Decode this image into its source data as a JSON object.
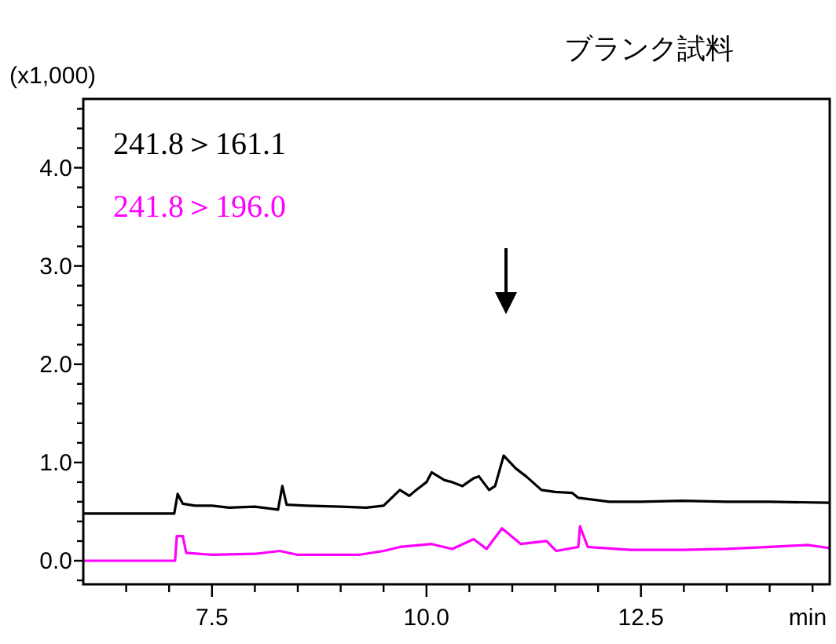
{
  "chart_data": {
    "type": "line",
    "title": "ブランク試料",
    "ylabel": "(x1,000)",
    "xlabel": "min",
    "legend": "top left",
    "grid": false,
    "marker": "none",
    "line_style": "solid",
    "xlim": [
      6.0,
      14.7
    ],
    "ylim": [
      -0.24,
      4.7
    ],
    "xticks": [
      {
        "value": 6.5,
        "label": null
      },
      {
        "value": 7.0,
        "label": null
      },
      {
        "value": 7.5,
        "label": "7.5"
      },
      {
        "value": 8.0,
        "label": null
      },
      {
        "value": 8.5,
        "label": null
      },
      {
        "value": 9.0,
        "label": null
      },
      {
        "value": 9.5,
        "label": null
      },
      {
        "value": 10.0,
        "label": "10.0"
      },
      {
        "value": 10.5,
        "label": null
      },
      {
        "value": 11.0,
        "label": null
      },
      {
        "value": 11.5,
        "label": null
      },
      {
        "value": 12.0,
        "label": null
      },
      {
        "value": 12.5,
        "label": "12.5"
      },
      {
        "value": 13.0,
        "label": null
      },
      {
        "value": 13.5,
        "label": null
      },
      {
        "value": 14.0,
        "label": null
      },
      {
        "value": 14.5,
        "label": null
      }
    ],
    "yticks": [
      {
        "value": -0.2,
        "label": null
      },
      {
        "value": 0,
        "label": "0.0"
      },
      {
        "value": 0.2,
        "label": null
      },
      {
        "value": 0.4,
        "label": null
      },
      {
        "value": 0.6,
        "label": null
      },
      {
        "value": 0.8,
        "label": null
      },
      {
        "value": 1,
        "label": "1.0"
      },
      {
        "value": 1.2,
        "label": null
      },
      {
        "value": 1.4,
        "label": null
      },
      {
        "value": 1.6,
        "label": null
      },
      {
        "value": 1.8,
        "label": null
      },
      {
        "value": 2,
        "label": "2.0"
      },
      {
        "value": 2.2,
        "label": null
      },
      {
        "value": 2.4,
        "label": null
      },
      {
        "value": 2.6,
        "label": null
      },
      {
        "value": 2.8,
        "label": null
      },
      {
        "value": 3,
        "label": "3.0"
      },
      {
        "value": 3.2,
        "label": null
      },
      {
        "value": 3.4,
        "label": null
      },
      {
        "value": 3.6,
        "label": null
      },
      {
        "value": 3.8,
        "label": null
      },
      {
        "value": 4,
        "label": "4.0"
      },
      {
        "value": 4.2,
        "label": null
      },
      {
        "value": 4.4,
        "label": null
      },
      {
        "value": 4.6,
        "label": null
      }
    ],
    "series": [
      {
        "name": "241.8＞161.1",
        "color": "#000000",
        "x": [
          6.0,
          7.06,
          7.1,
          7.16,
          7.3,
          7.5,
          7.7,
          8.0,
          8.27,
          8.32,
          8.37,
          8.6,
          9.0,
          9.3,
          9.5,
          9.69,
          9.8,
          9.88,
          10.0,
          10.06,
          10.21,
          10.3,
          10.42,
          10.55,
          10.61,
          10.73,
          10.8,
          10.9,
          11.04,
          11.16,
          11.34,
          11.5,
          11.7,
          11.77,
          12.13,
          12.5,
          12.98,
          13.5,
          14.0,
          14.69
        ],
        "values": [
          0.48,
          0.48,
          0.68,
          0.58,
          0.56,
          0.56,
          0.54,
          0.55,
          0.52,
          0.76,
          0.57,
          0.56,
          0.55,
          0.54,
          0.56,
          0.72,
          0.66,
          0.72,
          0.8,
          0.9,
          0.82,
          0.8,
          0.76,
          0.84,
          0.86,
          0.72,
          0.76,
          1.07,
          0.94,
          0.86,
          0.72,
          0.7,
          0.69,
          0.64,
          0.6,
          0.6,
          0.61,
          0.6,
          0.6,
          0.59
        ]
      },
      {
        "name": "241.8＞196.0",
        "color": "#ff00ff",
        "x": [
          6.0,
          7.07,
          7.09,
          7.16,
          7.2,
          7.5,
          8.0,
          8.29,
          8.5,
          9.0,
          9.21,
          9.5,
          9.69,
          10.06,
          10.3,
          10.55,
          10.7,
          10.88,
          11.1,
          11.4,
          11.51,
          11.77,
          11.79,
          11.88,
          12.38,
          13.0,
          13.5,
          14.0,
          14.44,
          14.69
        ],
        "values": [
          0.0,
          0.0,
          0.25,
          0.25,
          0.08,
          0.06,
          0.07,
          0.1,
          0.06,
          0.06,
          0.06,
          0.1,
          0.14,
          0.17,
          0.12,
          0.22,
          0.12,
          0.33,
          0.17,
          0.2,
          0.1,
          0.14,
          0.35,
          0.14,
          0.11,
          0.11,
          0.12,
          0.14,
          0.16,
          0.13
        ]
      }
    ]
  }
}
